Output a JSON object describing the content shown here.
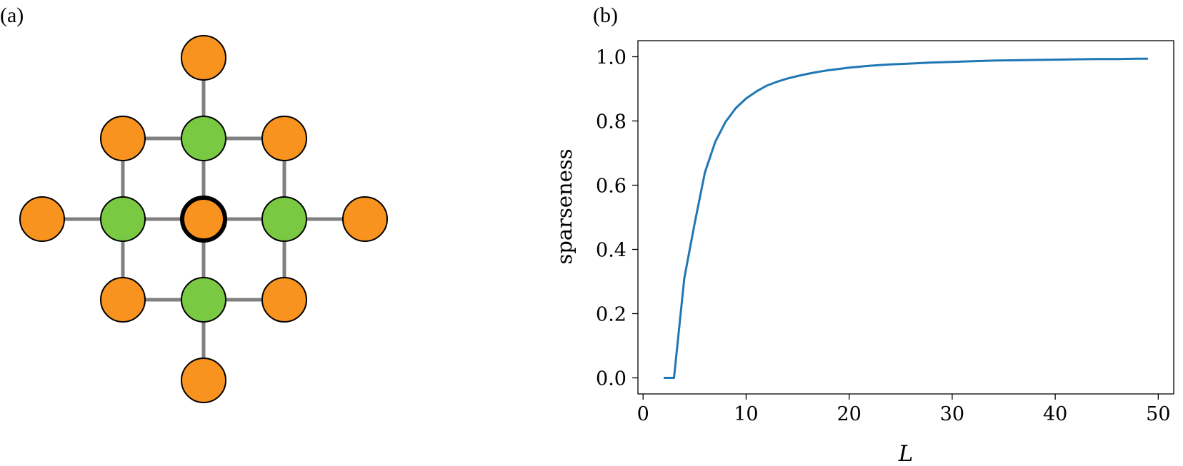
{
  "panel_a": {
    "label": "(a)",
    "colors": {
      "outer_node": "#F7931E",
      "neighbor_node": "#7AC943",
      "center_node": "#F7931E",
      "edge": "#808080",
      "node_outline": "#000000"
    },
    "nodes": [
      {
        "id": "top",
        "role": "outer"
      },
      {
        "id": "upper-left",
        "role": "outer"
      },
      {
        "id": "upper-middle",
        "role": "neighbor"
      },
      {
        "id": "upper-right",
        "role": "outer"
      },
      {
        "id": "far-left",
        "role": "outer"
      },
      {
        "id": "mid-left",
        "role": "neighbor"
      },
      {
        "id": "center",
        "role": "center"
      },
      {
        "id": "mid-right",
        "role": "neighbor"
      },
      {
        "id": "far-right",
        "role": "outer"
      },
      {
        "id": "lower-left",
        "role": "outer"
      },
      {
        "id": "lower-middle",
        "role": "neighbor"
      },
      {
        "id": "lower-right",
        "role": "outer"
      },
      {
        "id": "bottom",
        "role": "outer"
      }
    ],
    "edges": [
      [
        "top",
        "upper-middle"
      ],
      [
        "upper-left",
        "upper-middle"
      ],
      [
        "upper-middle",
        "upper-right"
      ],
      [
        "upper-left",
        "mid-left"
      ],
      [
        "upper-middle",
        "center"
      ],
      [
        "upper-right",
        "mid-right"
      ],
      [
        "far-left",
        "mid-left"
      ],
      [
        "mid-left",
        "center"
      ],
      [
        "center",
        "mid-right"
      ],
      [
        "mid-right",
        "far-right"
      ],
      [
        "mid-left",
        "lower-left"
      ],
      [
        "center",
        "lower-middle"
      ],
      [
        "mid-right",
        "lower-right"
      ],
      [
        "lower-left",
        "lower-middle"
      ],
      [
        "lower-middle",
        "lower-right"
      ],
      [
        "lower-middle",
        "bottom"
      ]
    ]
  },
  "panel_b": {
    "label": "(b)"
  },
  "chart_data": {
    "type": "line",
    "xlabel": "L",
    "ylabel": "sparseness",
    "xlim": [
      -0.5,
      51.5
    ],
    "ylim": [
      -0.05,
      1.05
    ],
    "xticks": [
      0,
      10,
      20,
      30,
      40,
      50
    ],
    "yticks": [
      0.0,
      0.2,
      0.4,
      0.6,
      0.8,
      1.0
    ],
    "xtick_labels": [
      "0",
      "10",
      "20",
      "30",
      "40",
      "50"
    ],
    "ytick_labels": [
      "0.0",
      "0.2",
      "0.4",
      "0.6",
      "0.8",
      "1.0"
    ],
    "grid": false,
    "series": [
      {
        "color": "#1F77B4",
        "x": [
          2,
          3,
          4,
          5,
          6,
          7,
          8,
          9,
          10,
          11,
          12,
          13,
          14,
          15,
          16,
          17,
          18,
          19,
          20,
          22,
          24,
          26,
          28,
          30,
          32,
          34,
          36,
          38,
          40,
          42,
          44,
          46,
          48,
          49
        ],
        "y": [
          0.0,
          0.0,
          0.31,
          0.48,
          0.64,
          0.735,
          0.797,
          0.84,
          0.87,
          0.892,
          0.91,
          0.922,
          0.932,
          0.94,
          0.947,
          0.953,
          0.958,
          0.962,
          0.966,
          0.972,
          0.976,
          0.979,
          0.982,
          0.984,
          0.986,
          0.988,
          0.989,
          0.99,
          0.991,
          0.992,
          0.993,
          0.993,
          0.994,
          0.994
        ]
      }
    ]
  }
}
